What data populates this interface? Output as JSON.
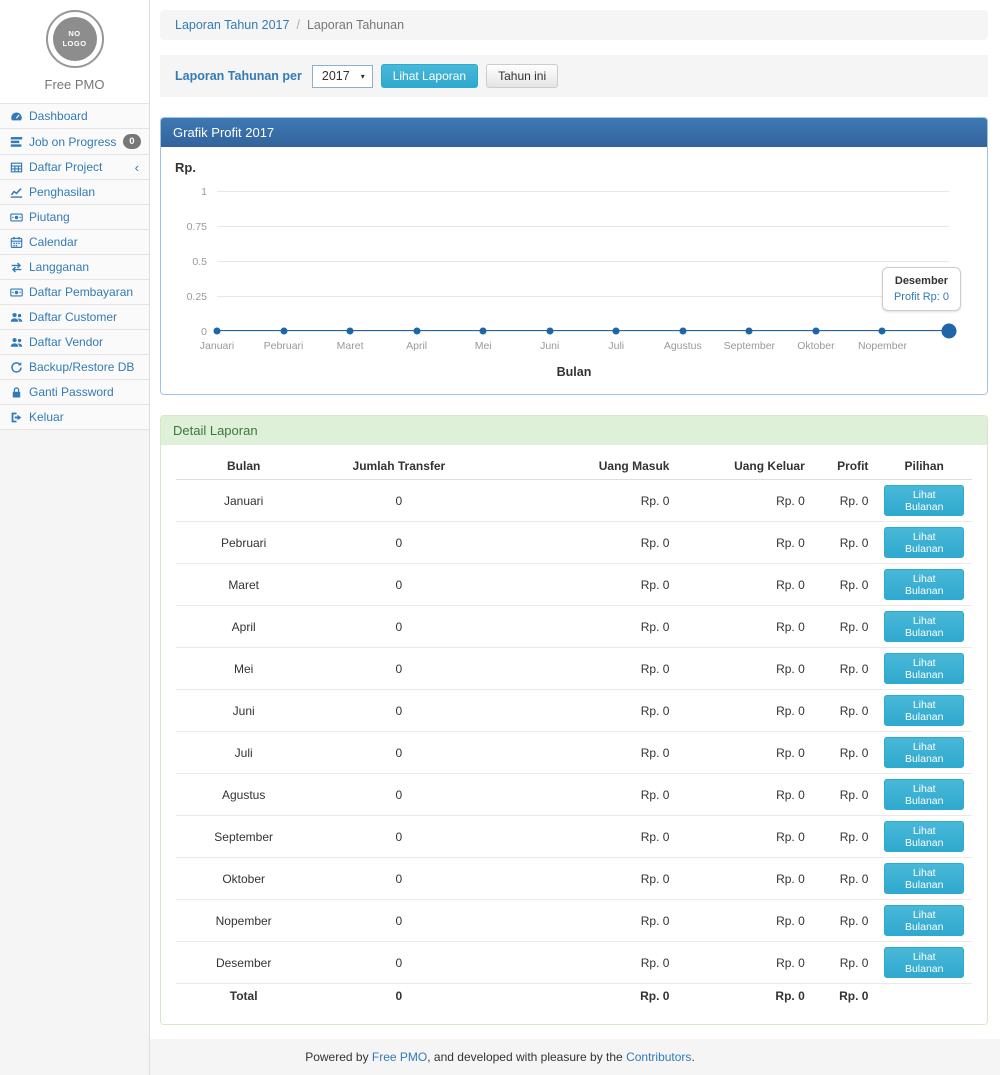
{
  "sidebar": {
    "logo_text": "NO LOGO",
    "brand": "Free PMO",
    "items": [
      {
        "label": "Dashboard",
        "icon": "dashboard-icon"
      },
      {
        "label": "Job on Progress",
        "icon": "tasks-icon",
        "badge": "0"
      },
      {
        "label": "Daftar Project",
        "icon": "table-icon",
        "chevron": "‹"
      },
      {
        "label": "Penghasilan",
        "icon": "line-chart-icon"
      },
      {
        "label": "Piutang",
        "icon": "money-icon"
      },
      {
        "label": "Calendar",
        "icon": "calendar-icon"
      },
      {
        "label": "Langganan",
        "icon": "exchange-icon"
      },
      {
        "label": "Daftar Pembayaran",
        "icon": "money-icon"
      },
      {
        "label": "Daftar Customer",
        "icon": "users-icon"
      },
      {
        "label": "Daftar Vendor",
        "icon": "users-icon"
      },
      {
        "label": "Backup/Restore DB",
        "icon": "refresh-icon"
      },
      {
        "label": "Ganti Password",
        "icon": "lock-icon"
      },
      {
        "label": "Keluar",
        "icon": "sign-out-icon"
      }
    ]
  },
  "breadcrumb": {
    "link": "Laporan Tahun 2017",
    "separator": "/",
    "current": "Laporan Tahunan"
  },
  "toolbar": {
    "label": "Laporan Tahunan per",
    "year": "2017",
    "view_button": "Lihat Laporan",
    "this_year_button": "Tahun ini"
  },
  "chart_panel": {
    "title": "Grafik Profit 2017",
    "y_unit": "Rp.",
    "x_title": "Bulan",
    "tooltip": {
      "title": "Desember",
      "value": "Profit Rp: 0"
    }
  },
  "chart_data": {
    "type": "line",
    "title": "Grafik Profit 2017",
    "xlabel": "Bulan",
    "ylabel": "Rp.",
    "categories": [
      "Januari",
      "Pebruari",
      "Maret",
      "April",
      "Mei",
      "Juni",
      "Juli",
      "Agustus",
      "September",
      "Oktober",
      "Nopember",
      "Desember"
    ],
    "series": [
      {
        "name": "Profit",
        "values": [
          0,
          0,
          0,
          0,
          0,
          0,
          0,
          0,
          0,
          0,
          0,
          0
        ]
      }
    ],
    "ylim": [
      0,
      1
    ],
    "yticks": [
      0,
      0.25,
      0.5,
      0.75,
      1
    ],
    "grid": true,
    "legend_position": "none",
    "line_color": "#1f66a8",
    "hovered_point": {
      "category": "Desember",
      "value": 0
    },
    "x_labels_shown": [
      "Januari",
      "Pebruari",
      "Maret",
      "April",
      "Mei",
      "Juni",
      "Juli",
      "Agustus",
      "September",
      "Oktober",
      "Nopember"
    ]
  },
  "detail_panel": {
    "title": "Detail Laporan",
    "table": {
      "headers": [
        "Bulan",
        "Jumlah Transfer",
        "Uang Masuk",
        "Uang Keluar",
        "Profit",
        "Pilihan"
      ],
      "action_label": "Lihat Bulanan",
      "rows": [
        {
          "month": "Januari",
          "transfer": "0",
          "masuk": "Rp. 0",
          "keluar": "Rp. 0",
          "profit": "Rp. 0"
        },
        {
          "month": "Pebruari",
          "transfer": "0",
          "masuk": "Rp. 0",
          "keluar": "Rp. 0",
          "profit": "Rp. 0"
        },
        {
          "month": "Maret",
          "transfer": "0",
          "masuk": "Rp. 0",
          "keluar": "Rp. 0",
          "profit": "Rp. 0"
        },
        {
          "month": "April",
          "transfer": "0",
          "masuk": "Rp. 0",
          "keluar": "Rp. 0",
          "profit": "Rp. 0"
        },
        {
          "month": "Mei",
          "transfer": "0",
          "masuk": "Rp. 0",
          "keluar": "Rp. 0",
          "profit": "Rp. 0"
        },
        {
          "month": "Juni",
          "transfer": "0",
          "masuk": "Rp. 0",
          "keluar": "Rp. 0",
          "profit": "Rp. 0"
        },
        {
          "month": "Juli",
          "transfer": "0",
          "masuk": "Rp. 0",
          "keluar": "Rp. 0",
          "profit": "Rp. 0"
        },
        {
          "month": "Agustus",
          "transfer": "0",
          "masuk": "Rp. 0",
          "keluar": "Rp. 0",
          "profit": "Rp. 0"
        },
        {
          "month": "September",
          "transfer": "0",
          "masuk": "Rp. 0",
          "keluar": "Rp. 0",
          "profit": "Rp. 0"
        },
        {
          "month": "Oktober",
          "transfer": "0",
          "masuk": "Rp. 0",
          "keluar": "Rp. 0",
          "profit": "Rp. 0"
        },
        {
          "month": "Nopember",
          "transfer": "0",
          "masuk": "Rp. 0",
          "keluar": "Rp. 0",
          "profit": "Rp. 0"
        },
        {
          "month": "Desember",
          "transfer": "0",
          "masuk": "Rp. 0",
          "keluar": "Rp. 0",
          "profit": "Rp. 0"
        }
      ],
      "total": {
        "label": "Total",
        "transfer": "0",
        "masuk": "Rp. 0",
        "keluar": "Rp. 0",
        "profit": "Rp. 0"
      }
    }
  },
  "footer": {
    "prefix": "Powered by ",
    "link1": "Free PMO",
    "middle": ", and developed with pleasure by the ",
    "link2": "Contributors",
    "suffix": "."
  },
  "colors": {
    "accent": "#337ab7",
    "panel_header_blue": "#3a74ad",
    "panel_border_blue": "#a2c3e0",
    "info_button": "#31b0d5",
    "success_bg": "#dff0d8",
    "success_border": "#d6e9c6",
    "success_text": "#3c763d",
    "line": "#1f66a8",
    "badge_bg": "#777777",
    "well_bg": "#f5f5f5"
  }
}
